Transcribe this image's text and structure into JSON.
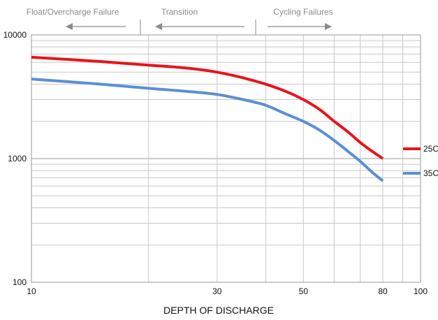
{
  "chart_data": {
    "type": "line",
    "title": "",
    "xlabel": "DEPTH OF DISCHARGE",
    "ylabel": "",
    "x_scale": "log",
    "y_scale": "log",
    "xlim": [
      10,
      100
    ],
    "ylim": [
      100,
      10000
    ],
    "grid": true,
    "x_ticks": [
      {
        "value": 10,
        "label": "10"
      },
      {
        "value": 30,
        "label": "30"
      },
      {
        "value": 50,
        "label": "50"
      },
      {
        "value": 80,
        "label": "80"
      },
      {
        "value": 100,
        "label": "100"
      }
    ],
    "y_ticks": [
      {
        "value": 100,
        "label": "100"
      },
      {
        "value": 1000,
        "label": "1000"
      },
      {
        "value": 10000,
        "label": "10000"
      }
    ],
    "series": [
      {
        "name": "25C",
        "color": "#e8141b",
        "x": [
          10,
          15,
          20,
          25,
          30,
          35,
          40,
          45,
          50,
          55,
          60,
          65,
          70,
          75,
          80
        ],
        "y": [
          6600,
          6100,
          5700,
          5400,
          5000,
          4500,
          4000,
          3500,
          3000,
          2500,
          2000,
          1650,
          1350,
          1150,
          1000
        ]
      },
      {
        "name": "35C",
        "color": "#5b8fd4",
        "x": [
          10,
          15,
          20,
          25,
          30,
          35,
          40,
          45,
          50,
          55,
          60,
          65,
          70,
          75,
          80
        ],
        "y": [
          4400,
          4000,
          3700,
          3500,
          3300,
          3000,
          2700,
          2300,
          2000,
          1700,
          1400,
          1150,
          950,
          780,
          660
        ]
      }
    ],
    "legend_placement": "right",
    "annotations": [
      {
        "text": "Float/Overcharge Failure",
        "arrow": "left"
      },
      {
        "text": "Transition",
        "arrow": "left"
      },
      {
        "text": "Cycling Failures",
        "arrow": "right"
      }
    ]
  }
}
